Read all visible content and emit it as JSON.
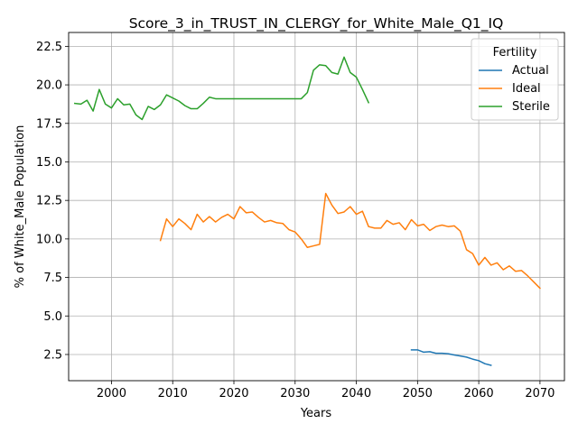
{
  "chart_data": {
    "type": "line",
    "title": "Score_3_in_TRUST_IN_CLERGY_for_White_Male_Q1_IQ",
    "xlabel": "Years",
    "ylabel": "% of White_Male Population",
    "xlim": [
      1993,
      2074
    ],
    "ylim": [
      0.8,
      23.4
    ],
    "xticks": [
      2000,
      2010,
      2020,
      2030,
      2040,
      2050,
      2060,
      2070
    ],
    "yticks": [
      2.5,
      5.0,
      7.5,
      10.0,
      12.5,
      15.0,
      17.5,
      20.0,
      22.5
    ],
    "ytick_labels": [
      "2.5",
      "5.0",
      "7.5",
      "10.0",
      "12.5",
      "15.0",
      "17.5",
      "20.0",
      "22.5"
    ],
    "grid": true,
    "legend": {
      "title": "Fertility",
      "placement": "top-right"
    },
    "series": [
      {
        "name": "Actual",
        "color": "#1f77b4",
        "x": [
          2049,
          2050,
          2051,
          2052,
          2053,
          2054,
          2055,
          2056,
          2057,
          2058,
          2059,
          2060,
          2061,
          2062
        ],
        "y": [
          2.8,
          2.8,
          2.65,
          2.68,
          2.58,
          2.58,
          2.55,
          2.47,
          2.4,
          2.33,
          2.2,
          2.1,
          1.9,
          1.8
        ]
      },
      {
        "name": "Ideal",
        "color": "#ff7f0e",
        "x": [
          2008,
          2009,
          2010,
          2011,
          2012,
          2013,
          2014,
          2015,
          2016,
          2017,
          2018,
          2019,
          2020,
          2021,
          2022,
          2023,
          2024,
          2025,
          2026,
          2027,
          2028,
          2029,
          2030,
          2031,
          2032,
          2033,
          2034,
          2035,
          2036,
          2037,
          2038,
          2039,
          2040,
          2041,
          2042,
          2043,
          2044,
          2045,
          2046,
          2047,
          2048,
          2049,
          2050,
          2051,
          2052,
          2053,
          2054,
          2055,
          2056,
          2057,
          2058,
          2059,
          2060,
          2061,
          2062,
          2063,
          2064,
          2065,
          2066,
          2067,
          2068,
          2069,
          2070
        ],
        "y": [
          9.9,
          11.3,
          10.8,
          11.3,
          11.0,
          10.6,
          11.6,
          11.1,
          11.45,
          11.1,
          11.4,
          11.6,
          11.3,
          12.1,
          11.7,
          11.75,
          11.4,
          11.1,
          11.2,
          11.05,
          11.0,
          10.6,
          10.45,
          10.0,
          9.45,
          9.55,
          9.65,
          12.95,
          12.2,
          11.65,
          11.75,
          12.1,
          11.6,
          11.8,
          10.8,
          10.7,
          10.7,
          11.2,
          10.95,
          11.05,
          10.6,
          11.25,
          10.85,
          10.95,
          10.55,
          10.8,
          10.9,
          10.8,
          10.85,
          10.5,
          9.3,
          9.05,
          8.3,
          8.8,
          8.3,
          8.45,
          8.0,
          8.25,
          7.9,
          7.95,
          7.6,
          7.2,
          6.8
        ]
      },
      {
        "name": "Sterile",
        "color": "#2ca02c",
        "x": [
          1994,
          1995,
          1996,
          1997,
          1998,
          1999,
          2000,
          2001,
          2002,
          2003,
          2004,
          2005,
          2006,
          2007,
          2008,
          2009,
          2010,
          2011,
          2012,
          2013,
          2014,
          2015,
          2016,
          2017,
          2018,
          2019,
          2020,
          2021,
          2022,
          2023,
          2024,
          2025,
          2026,
          2027,
          2028,
          2029,
          2030,
          2031,
          2032,
          2033,
          2034,
          2035,
          2036,
          2037,
          2038,
          2039,
          2040,
          2041,
          2042
        ],
        "y": [
          18.8,
          18.75,
          19.0,
          18.3,
          19.7,
          18.75,
          18.5,
          19.1,
          18.7,
          18.75,
          18.05,
          17.75,
          18.6,
          18.4,
          18.7,
          19.35,
          19.15,
          18.95,
          18.65,
          18.45,
          18.45,
          18.8,
          19.2,
          19.1,
          19.1,
          19.1,
          19.1,
          19.1,
          19.1,
          19.1,
          19.1,
          19.1,
          19.1,
          19.1,
          19.1,
          19.1,
          19.1,
          19.1,
          19.5,
          20.95,
          21.3,
          21.25,
          20.8,
          20.7,
          21.8,
          20.8,
          20.5,
          19.7,
          18.85
        ]
      }
    ]
  }
}
